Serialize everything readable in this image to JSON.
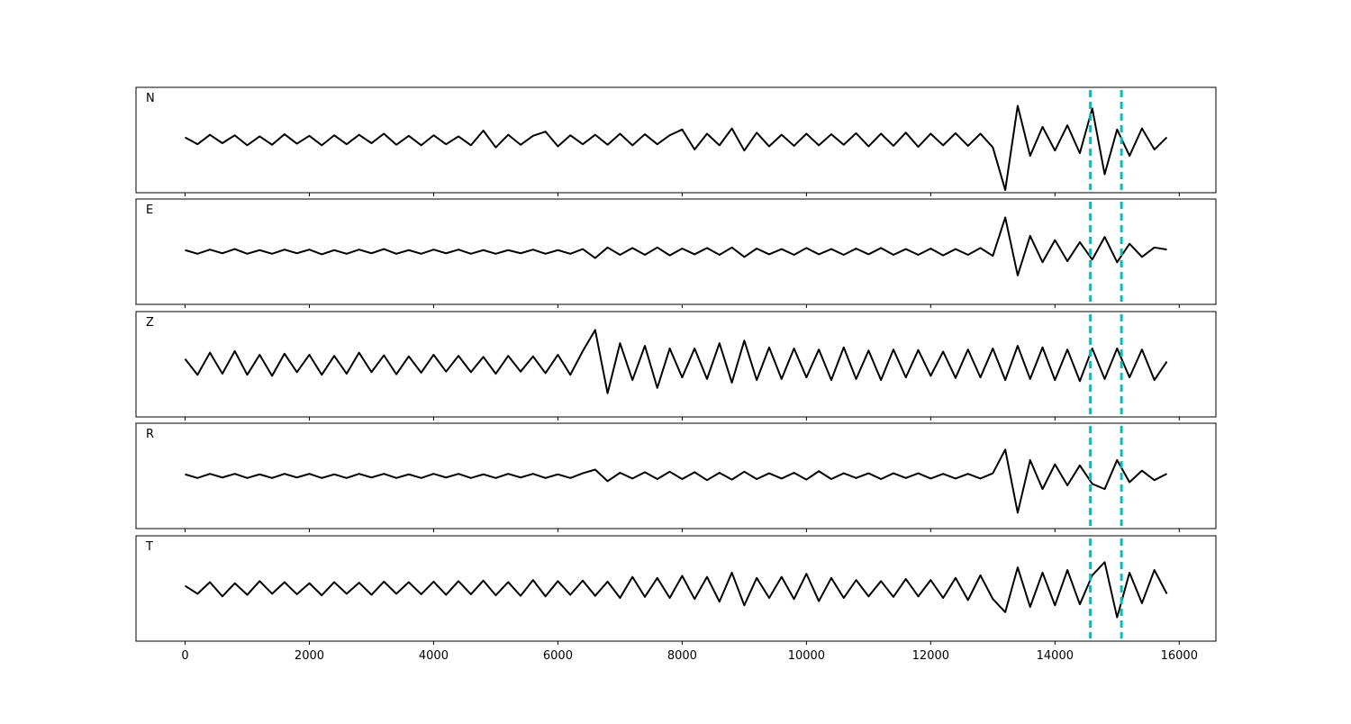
{
  "chart_data": {
    "type": "line",
    "subplots": true,
    "x": [
      0,
      200,
      400,
      600,
      800,
      1000,
      1200,
      1400,
      1600,
      1800,
      2000,
      2200,
      2400,
      2600,
      2800,
      3000,
      3200,
      3400,
      3600,
      3800,
      4000,
      4200,
      4400,
      4600,
      4800,
      5000,
      5200,
      5400,
      5600,
      5800,
      6000,
      6200,
      6400,
      6600,
      6800,
      7000,
      7200,
      7400,
      7600,
      7800,
      8000,
      8200,
      8400,
      8600,
      8800,
      9000,
      9200,
      9400,
      9600,
      9800,
      10000,
      10200,
      10400,
      10600,
      10800,
      11000,
      11200,
      11400,
      11600,
      11800,
      12000,
      12200,
      12400,
      12600,
      12800,
      13000,
      13200,
      13400,
      13600,
      13800,
      14000,
      14200,
      14400,
      14600,
      14800,
      15000,
      15200,
      15400,
      15600,
      15800
    ],
    "xlim": [
      -790,
      16590
    ],
    "xticks": [
      0,
      2000,
      4000,
      6000,
      8000,
      10000,
      12000,
      14000,
      16000
    ],
    "ylim": [
      -100,
      100
    ],
    "vlines": [
      14570,
      15070
    ],
    "vline_color": "#00bfbf",
    "series": [
      {
        "name": "N",
        "color": "#000000",
        "values": [
          5,
          -8,
          10,
          -6,
          9,
          -10,
          7,
          -9,
          11,
          -7,
          8,
          -10,
          9,
          -8,
          10,
          -6,
          12,
          -9,
          8,
          -10,
          9,
          -8,
          7,
          -10,
          18,
          -14,
          10,
          -9,
          8,
          16,
          -12,
          9,
          -8,
          10,
          -9,
          12,
          -10,
          11,
          -8,
          9,
          20,
          -18,
          12,
          -10,
          22,
          -20,
          14,
          -12,
          10,
          -11,
          12,
          -10,
          11,
          -9,
          13,
          -12,
          12,
          -11,
          14,
          -13,
          12,
          -10,
          13,
          -11,
          12,
          -14,
          -95,
          65,
          -30,
          25,
          -20,
          28,
          -25,
          60,
          -65,
          20,
          -30,
          22,
          -18,
          5
        ]
      },
      {
        "name": "E",
        "color": "#000000",
        "values": [
          3,
          -4,
          4,
          -3,
          5,
          -4,
          3,
          -4,
          4,
          -3,
          4,
          -5,
          3,
          -4,
          4,
          -3,
          5,
          -4,
          3,
          -4,
          4,
          -3,
          4,
          -4,
          3,
          -4,
          3,
          -3,
          4,
          -4,
          3,
          -4,
          5,
          -12,
          8,
          -6,
          7,
          -6,
          8,
          -7,
          6,
          -5,
          7,
          -6,
          8,
          -10,
          6,
          -5,
          5,
          -6,
          7,
          -5,
          5,
          -6,
          6,
          -5,
          7,
          -6,
          5,
          -6,
          6,
          -7,
          5,
          -6,
          7,
          -8,
          65,
          -45,
          30,
          -20,
          22,
          -18,
          18,
          -15,
          28,
          -20,
          15,
          -10,
          8,
          4
        ]
      },
      {
        "name": "Z",
        "color": "#000000",
        "values": [
          10,
          -20,
          22,
          -18,
          25,
          -20,
          18,
          -22,
          20,
          -15,
          18,
          -20,
          16,
          -18,
          22,
          -15,
          17,
          -19,
          15,
          -16,
          18,
          -14,
          16,
          -15,
          14,
          -18,
          16,
          -14,
          15,
          -17,
          18,
          -20,
          25,
          65,
          -55,
          40,
          -30,
          35,
          -45,
          30,
          -25,
          30,
          -28,
          40,
          -35,
          45,
          -30,
          32,
          -28,
          30,
          -25,
          28,
          -30,
          32,
          -28,
          26,
          -30,
          28,
          -25,
          27,
          -22,
          24,
          -26,
          28,
          -25,
          30,
          -30,
          35,
          -28,
          32,
          -30,
          28,
          -32,
          30,
          -28,
          30,
          -25,
          28,
          -30,
          5
        ]
      },
      {
        "name": "R",
        "color": "#000000",
        "values": [
          3,
          -4,
          4,
          -3,
          4,
          -4,
          3,
          -4,
          4,
          -3,
          4,
          -4,
          3,
          -4,
          4,
          -3,
          4,
          -4,
          3,
          -4,
          4,
          -3,
          4,
          -4,
          3,
          -4,
          4,
          -3,
          4,
          -4,
          3,
          -4,
          5,
          12,
          -10,
          6,
          -5,
          7,
          -6,
          8,
          -6,
          7,
          -8,
          6,
          -7,
          8,
          -6,
          5,
          -5,
          6,
          -7,
          9,
          -6,
          5,
          -4,
          5,
          -6,
          5,
          -4,
          5,
          -5,
          4,
          -5,
          4,
          -5,
          5,
          50,
          -70,
          30,
          -25,
          22,
          -18,
          20,
          -15,
          -25,
          30,
          -12,
          10,
          -8,
          4
        ]
      },
      {
        "name": "T",
        "color": "#000000",
        "values": [
          5,
          -10,
          12,
          -15,
          10,
          -12,
          14,
          -10,
          12,
          -11,
          10,
          -13,
          12,
          -10,
          11,
          -12,
          13,
          -10,
          12,
          -11,
          13,
          -12,
          14,
          -11,
          15,
          -13,
          12,
          -14,
          16,
          -15,
          14,
          -12,
          15,
          -14,
          13,
          -18,
          22,
          -16,
          20,
          -18,
          24,
          -20,
          22,
          -25,
          30,
          -32,
          20,
          -18,
          22,
          -20,
          28,
          -24,
          20,
          -18,
          16,
          -15,
          14,
          -16,
          18,
          -15,
          16,
          -18,
          20,
          -22,
          25,
          -20,
          -45,
          40,
          -35,
          30,
          -32,
          35,
          -30,
          25,
          50,
          -55,
          30,
          -28,
          35,
          -10
        ]
      }
    ]
  }
}
